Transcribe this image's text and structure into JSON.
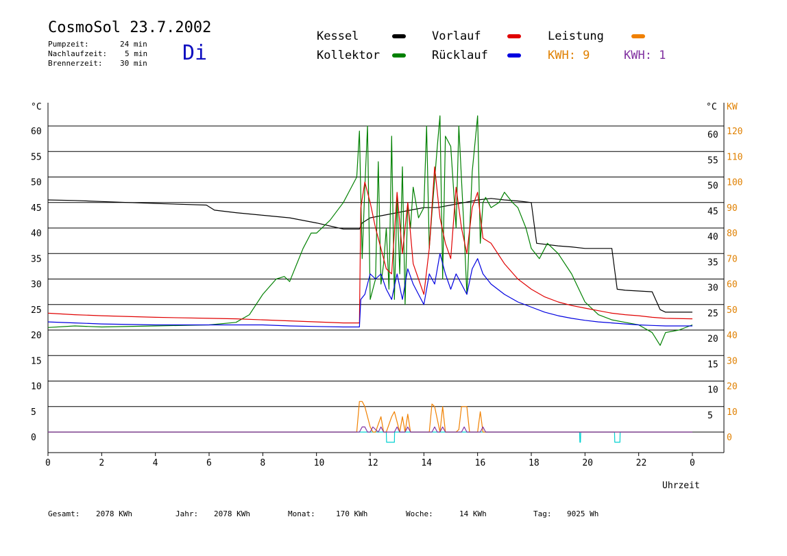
{
  "header": {
    "title": "CosmoSol 23.7.2002",
    "day": "Di",
    "pumpzeit_label": "Pumpzeit:",
    "pumpzeit_value": "24 min",
    "nachlaufzeit_label": "Nachlaufzeit:",
    "nachlaufzeit_value": "5 min",
    "brennerzeit_label": "Brennerzeit:",
    "brennerzeit_value": "30 min"
  },
  "legend": {
    "kessel": "Kessel",
    "kollektor": "Kollektor",
    "vorlauf": "Vorlauf",
    "ruecklauf": "Rücklauf",
    "leistung": "Leistung",
    "kwh1": "KWH: 9",
    "kwh2": "KWH: 1"
  },
  "colors": {
    "kessel": "#000000",
    "kollektor": "#008000",
    "vorlauf": "#e00000",
    "ruecklauf": "#0000e0",
    "leistung": "#f08000",
    "kwh2": "#8030a0",
    "pump": "#00d0d0",
    "axis_kw": "#e08000"
  },
  "footer": {
    "gesamt_label": "Gesamt:",
    "gesamt_value": "2078 KWh",
    "jahr_label": "Jahr:",
    "jahr_value": "2078 KWh",
    "monat_label": "Monat:",
    "monat_value": "170 KWh",
    "woche_label": "Woche:",
    "woche_value": "14 KWh",
    "tag_label": "Tag:",
    "tag_value": "9025 Wh"
  },
  "chart_data": {
    "type": "line",
    "xlabel": "Uhrzeit",
    "x_ticks": [
      "0",
      "2",
      "4",
      "6",
      "8",
      "10",
      "12",
      "14",
      "16",
      "18",
      "20",
      "22",
      "0"
    ],
    "xlim": [
      0,
      24
    ],
    "ylabel_left": "°C",
    "ylabel_right_temp": "°C",
    "ylabel_right_kw": "KW",
    "ylim": [
      -4,
      65
    ],
    "y_ticks_left": [
      "60",
      "55",
      "50",
      "45",
      "40",
      "35",
      "30",
      "25",
      "20",
      "15",
      "10",
      "5",
      "0"
    ],
    "y_ticks_right_temp": [
      "60",
      "55",
      "50",
      "45",
      "40",
      "35",
      "30",
      "25",
      "20",
      "15",
      "10",
      "5"
    ],
    "y_ticks_right_kw": [
      "KW",
      "120",
      "110",
      "100",
      "90",
      "80",
      "70",
      "60",
      "50",
      "40",
      "30",
      "20",
      "10",
      "0"
    ],
    "grid": true,
    "series": [
      {
        "name": "Kessel",
        "x": [
          0,
          1,
          2,
          4,
          5.9,
          6.2,
          7,
          8,
          9,
          10,
          11,
          11.6,
          11.7,
          12,
          12.5,
          13,
          13.5,
          14,
          14.5,
          15,
          15.5,
          16,
          16.5,
          17,
          17.5,
          18,
          18.2,
          19,
          19.5,
          20,
          21,
          21.2,
          21.5,
          22.5,
          22.8,
          23,
          24
        ],
        "y": [
          45.5,
          45.4,
          45.2,
          44.8,
          44.5,
          43.5,
          43,
          42.5,
          42,
          41,
          39.8,
          39.8,
          41,
          42,
          42.5,
          43,
          43.5,
          44,
          44,
          44.5,
          45,
          45.5,
          45.8,
          45.5,
          45.3,
          45,
          37,
          36.5,
          36.3,
          36,
          36,
          28,
          27.8,
          27.5,
          24,
          23.5,
          23.5
        ]
      },
      {
        "name": "Kollektor",
        "x": [
          0,
          1,
          2,
          4,
          6,
          7,
          7.5,
          8,
          8.5,
          8.8,
          9,
          9.5,
          9.8,
          10,
          10.5,
          11,
          11.3,
          11.5,
          11.6,
          11.7,
          11.8,
          11.9,
          12,
          12.2,
          12.3,
          12.4,
          12.5,
          12.6,
          12.7,
          12.8,
          12.9,
          13,
          13.1,
          13.2,
          13.3,
          13.4,
          13.5,
          13.6,
          13.8,
          14,
          14.1,
          14.2,
          14.3,
          14.5,
          14.6,
          14.7,
          14.8,
          15,
          15.2,
          15.3,
          15.5,
          15.6,
          15.8,
          16,
          16.1,
          16.2,
          16.3,
          16.5,
          16.8,
          17,
          17.3,
          17.5,
          17.8,
          18,
          18.3,
          18.6,
          19,
          19.5,
          20,
          20.5,
          21,
          21.5,
          22,
          22.5,
          22.8,
          23,
          23.5,
          24
        ],
        "y": [
          20.5,
          20.8,
          20.6,
          20.8,
          21,
          21.5,
          23,
          27,
          30,
          30.5,
          29.5,
          36,
          39,
          39,
          41.5,
          45,
          48,
          50,
          59,
          34,
          48,
          60,
          26,
          30,
          53,
          29,
          33,
          40,
          28,
          58,
          26,
          46,
          31,
          52,
          25,
          45,
          40,
          48,
          42,
          44,
          60,
          36,
          43,
          56,
          62,
          30,
          58,
          56,
          40,
          60,
          39,
          27,
          51,
          62,
          37,
          45,
          46,
          44,
          45,
          47,
          45,
          44,
          40,
          36,
          34,
          37,
          35,
          31,
          25.5,
          23,
          22,
          21.5,
          21,
          19.5,
          17,
          19.5,
          20,
          21
        ]
      },
      {
        "name": "Vorlauf",
        "x": [
          0,
          1,
          2,
          4,
          6,
          7,
          8,
          9,
          10,
          11,
          11.6,
          11.65,
          11.8,
          12,
          12.2,
          12.4,
          12.6,
          12.8,
          13,
          13.2,
          13.4,
          13.6,
          13.8,
          14,
          14.2,
          14.4,
          14.6,
          14.8,
          15,
          15.2,
          15.4,
          15.6,
          15.8,
          16,
          16.2,
          16.5,
          17,
          17.5,
          18,
          18.5,
          19,
          19.5,
          20,
          20.5,
          21,
          21.5,
          22,
          22.5,
          23,
          24
        ],
        "y": [
          23.3,
          23,
          22.8,
          22.5,
          22.3,
          22.2,
          22,
          21.8,
          21.6,
          21.4,
          21.4,
          44,
          49,
          45,
          40,
          36,
          32,
          31,
          47,
          35,
          45,
          33,
          30,
          27,
          36,
          52,
          42,
          37,
          34,
          48,
          40,
          35,
          44,
          47,
          38,
          37,
          33,
          30,
          28,
          26.5,
          25.5,
          24.8,
          24.3,
          23.8,
          23.3,
          23,
          22.8,
          22.5,
          22.3,
          22.2
        ]
      },
      {
        "name": "Rücklauf",
        "x": [
          0,
          1,
          2,
          4,
          6,
          7,
          8,
          9,
          10,
          11,
          11.6,
          11.65,
          11.8,
          12,
          12.2,
          12.4,
          12.6,
          12.8,
          13,
          13.2,
          13.4,
          13.6,
          13.8,
          14,
          14.2,
          14.4,
          14.6,
          14.8,
          15,
          15.2,
          15.4,
          15.6,
          15.8,
          16,
          16.2,
          16.5,
          17,
          17.5,
          18,
          18.5,
          19,
          19.5,
          20,
          20.5,
          21,
          21.5,
          22,
          22.5,
          23,
          24
        ],
        "y": [
          21.6,
          21.4,
          21.2,
          21,
          21,
          21,
          21,
          20.8,
          20.7,
          20.6,
          20.6,
          26,
          27,
          31,
          30,
          31,
          28,
          26,
          31,
          26,
          32,
          29,
          27,
          25,
          31,
          29,
          35,
          31,
          28,
          31,
          29,
          27,
          32,
          34,
          31,
          29,
          27,
          25.5,
          24.5,
          23.5,
          22.8,
          22.3,
          21.9,
          21.6,
          21.4,
          21.2,
          21,
          20.9,
          20.8,
          20.8
        ]
      },
      {
        "name": "Leistung",
        "x": [
          0,
          11.5,
          11.6,
          11.7,
          11.8,
          12,
          12.1,
          12.2,
          12.4,
          12.5,
          12.6,
          12.8,
          12.9,
          13.1,
          13.2,
          13.3,
          13.4,
          13.5,
          14.2,
          14.3,
          14.4,
          14.6,
          14.7,
          14.8,
          15.2,
          15.3,
          15.4,
          15.6,
          15.7,
          16,
          16.1,
          16.2,
          16.3,
          24
        ],
        "y": [
          0,
          0,
          6,
          6,
          5,
          1,
          0,
          0,
          3,
          0,
          0,
          3,
          4,
          0,
          3,
          0,
          3.5,
          0,
          0,
          5.5,
          5,
          0,
          5,
          0,
          0,
          0.5,
          5,
          5,
          0,
          0,
          4,
          0,
          0,
          0
        ]
      },
      {
        "name": "KWH2",
        "x": [
          0,
          11.6,
          11.7,
          11.8,
          11.9,
          12,
          12.1,
          12.3,
          12.4,
          12.5,
          12.9,
          13,
          13.1,
          13.3,
          13.4,
          13.5,
          14.3,
          14.4,
          14.5,
          14.6,
          14.7,
          14.8,
          15.4,
          15.5,
          15.6,
          16.1,
          16.2,
          16.3,
          24
        ],
        "y": [
          0,
          0,
          1,
          1,
          0,
          0,
          1,
          0,
          1,
          0,
          0,
          1,
          0,
          0,
          1,
          0,
          0,
          1,
          0,
          0,
          1,
          0,
          0,
          1,
          0,
          0,
          1,
          0,
          0
        ]
      },
      {
        "name": "Pump",
        "x": [
          0,
          12.6,
          12.61,
          12.9,
          12.91,
          19.8,
          19.81,
          19.83,
          19.84,
          21.1,
          21.11,
          21.3,
          21.31,
          24
        ],
        "y": [
          0,
          0,
          -2,
          -2,
          0,
          0,
          -2,
          -2,
          0,
          0,
          -2,
          -2,
          0,
          0
        ]
      }
    ]
  }
}
